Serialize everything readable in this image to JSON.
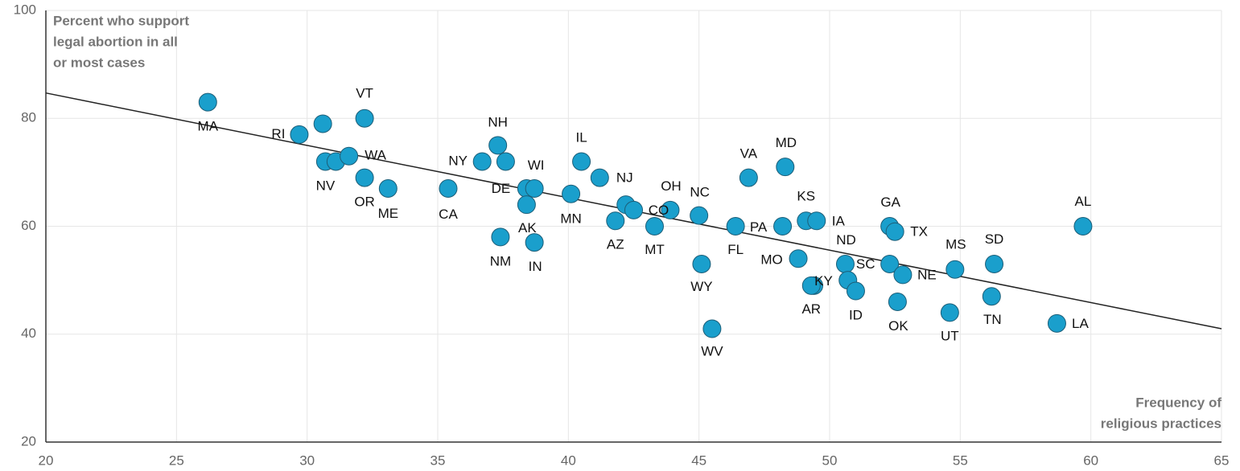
{
  "chart_data": {
    "type": "scatter",
    "y_label": [
      "Percent who support",
      "legal abortion in all",
      "or most cases"
    ],
    "x_label": [
      "Frequency of",
      "religious practices"
    ],
    "xlim": [
      20,
      65
    ],
    "ylim": [
      20,
      100
    ],
    "xticks": [
      20,
      25,
      30,
      35,
      40,
      45,
      50,
      55,
      60,
      65
    ],
    "yticks": [
      20,
      40,
      60,
      80,
      100
    ],
    "grid": true,
    "color": "#1a9fcc",
    "labels": [
      "MA",
      "RI",
      null,
      "VT",
      "NV",
      null,
      "WA",
      "OR",
      "ME",
      "CA",
      "NY",
      "NH",
      null,
      "DE",
      "WI",
      "AK",
      "IN",
      "NM",
      "MN",
      "IL",
      "NJ",
      "AZ",
      null,
      "CO",
      "OH",
      "MT",
      "NC",
      "WY",
      "WV",
      "FL",
      "PA",
      "VA",
      "MD",
      "KS",
      "IA",
      "MO",
      "KY",
      "AR",
      "ND",
      "SC",
      "ID",
      "GA",
      "TX",
      null,
      "NE",
      "OK",
      "MS",
      "UT",
      "SD",
      "TN",
      "LA",
      "AL"
    ],
    "x": [
      26.2,
      29.7,
      30.6,
      32.2,
      30.7,
      31.1,
      31.6,
      32.2,
      33.1,
      35.4,
      36.7,
      37.3,
      37.6,
      38.4,
      38.7,
      38.4,
      38.7,
      37.4,
      40.1,
      40.5,
      41.2,
      41.8,
      42.2,
      42.5,
      43.9,
      43.3,
      45.0,
      45.1,
      45.5,
      46.4,
      48.2,
      46.9,
      48.3,
      49.1,
      49.5,
      48.8,
      49.4,
      49.3,
      50.6,
      50.7,
      51.0,
      52.3,
      52.5,
      52.3,
      52.8,
      52.6,
      54.8,
      54.6,
      56.3,
      56.2,
      58.7,
      59.7
    ],
    "values": [
      83,
      77,
      79,
      80,
      72,
      72,
      73,
      69,
      67,
      67,
      72,
      75,
      72,
      67,
      67,
      64,
      57,
      58,
      66,
      72,
      69,
      61,
      64,
      63,
      63,
      60,
      62,
      53,
      41,
      60,
      60,
      69,
      71,
      61,
      61,
      54,
      49,
      49,
      53,
      50,
      48,
      60,
      59,
      53,
      51,
      46,
      52,
      44,
      53,
      47,
      42,
      60
    ],
    "trendline": {
      "x": [
        20,
        65
      ],
      "values": [
        84.7,
        41.0
      ]
    }
  }
}
